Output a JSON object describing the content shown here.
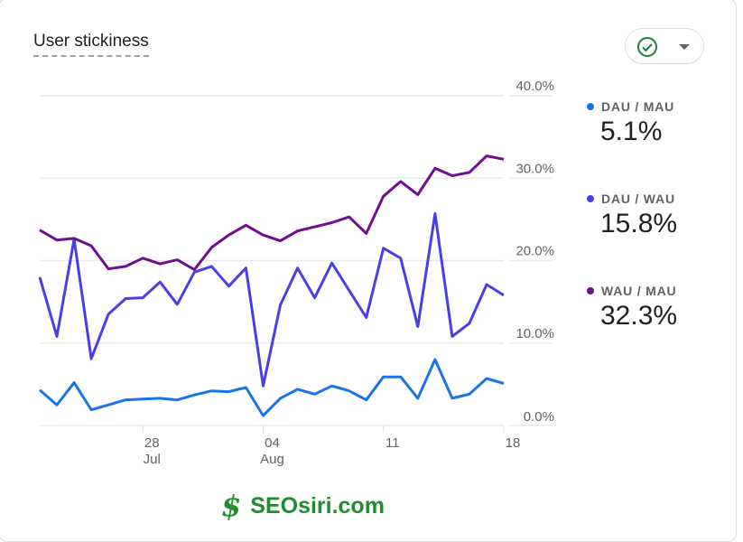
{
  "card": {
    "title": "User stickiness"
  },
  "filter": {
    "icon": "check-circle-icon",
    "dropdown": "caret-down-icon",
    "check_color": "#188038"
  },
  "legend": [
    {
      "label": "DAU / MAU",
      "value": "5.1%",
      "color": "#1a73e8"
    },
    {
      "label": "DAU / WAU",
      "value": "15.8%",
      "color": "#4a3ee8"
    },
    {
      "label": "WAU / MAU",
      "value": "32.3%",
      "color": "#6f0f8f"
    }
  ],
  "watermark": {
    "text": "SEOsiri.com",
    "glyph": "$"
  },
  "chart_data": {
    "type": "line",
    "x": [
      "Jul 22",
      "Jul 23",
      "Jul 24",
      "Jul 25",
      "Jul 26",
      "Jul 27",
      "Jul 28",
      "Jul 29",
      "Jul 30",
      "Jul 31",
      "Aug 1",
      "Aug 2",
      "Aug 3",
      "Aug 4",
      "Aug 5",
      "Aug 6",
      "Aug 7",
      "Aug 8",
      "Aug 9",
      "Aug 10",
      "Aug 11",
      "Aug 12",
      "Aug 13",
      "Aug 14",
      "Aug 15",
      "Aug 16",
      "Aug 17",
      "Aug 18"
    ],
    "x_ticks": [
      {
        "index": 6,
        "day": "28",
        "month": "Jul"
      },
      {
        "index": 13,
        "day": "04",
        "month": "Aug"
      },
      {
        "index": 20,
        "day": "11",
        "month": ""
      },
      {
        "index": 27,
        "day": "18",
        "month": ""
      }
    ],
    "y_ticks": [
      "0.0%",
      "10.0%",
      "20.0%",
      "30.0%",
      "40.0%"
    ],
    "ylim": [
      0,
      40
    ],
    "y_axis_position": "right",
    "grid": true,
    "legend_position": "right",
    "series": [
      {
        "name": "DAU / MAU",
        "color": "#1a73e8",
        "values": [
          4.3,
          2.5,
          5.2,
          1.9,
          2.5,
          3.1,
          3.2,
          3.3,
          3.1,
          3.7,
          4.2,
          4.1,
          4.6,
          1.2,
          3.3,
          4.4,
          3.8,
          4.8,
          4.2,
          3.1,
          5.9,
          5.9,
          3.3,
          8.0,
          3.3,
          3.8,
          5.7,
          5.1
        ]
      },
      {
        "name": "DAU / WAU",
        "color": "#4a3ee8",
        "values": [
          18.0,
          10.8,
          22.6,
          8.1,
          13.5,
          15.4,
          15.5,
          17.4,
          14.7,
          18.6,
          19.3,
          16.9,
          19.1,
          4.8,
          14.6,
          19.1,
          15.5,
          19.7,
          16.4,
          13.1,
          21.5,
          20.3,
          12.0,
          25.7,
          10.8,
          12.4,
          17.1,
          15.8
        ]
      },
      {
        "name": "WAU / MAU",
        "color": "#6f0f8f",
        "values": [
          23.7,
          22.5,
          22.7,
          21.8,
          19.0,
          19.3,
          20.3,
          19.6,
          20.1,
          18.9,
          21.6,
          23.1,
          24.3,
          23.1,
          22.4,
          23.6,
          24.1,
          24.6,
          25.3,
          23.3,
          27.8,
          29.6,
          28.0,
          31.2,
          30.3,
          30.7,
          32.7,
          32.3
        ]
      }
    ]
  }
}
